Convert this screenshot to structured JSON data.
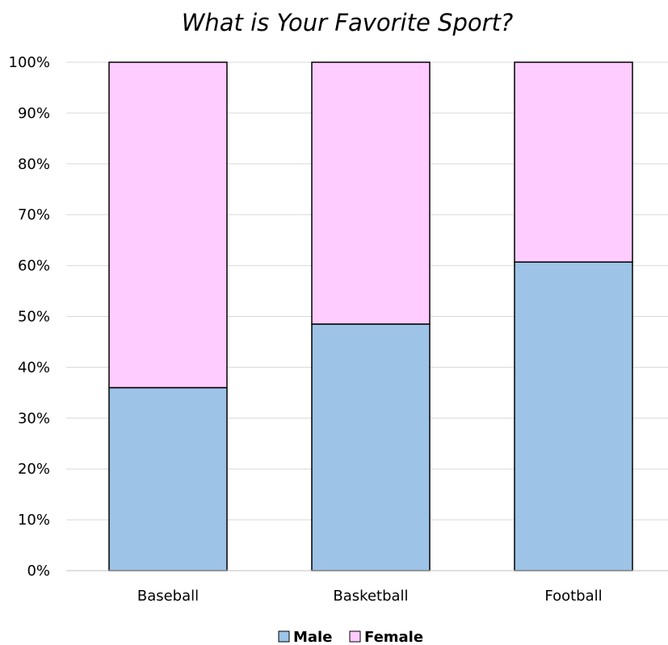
{
  "chart_data": {
    "type": "bar",
    "stacked": true,
    "percent_stacked": true,
    "title": "What is Your Favorite Sport?",
    "xlabel": "",
    "ylabel": "",
    "categories": [
      "Baseball",
      "Basketball",
      "Football"
    ],
    "series": [
      {
        "name": "Male",
        "color": "#9dc3e6",
        "values": [
          36,
          48.5,
          60.7
        ]
      },
      {
        "name": "Female",
        "color": "#ffccff",
        "values": [
          64,
          51.5,
          39.3
        ]
      }
    ],
    "ylim": [
      0,
      100
    ],
    "y_ticks": [
      "0%",
      "10%",
      "20%",
      "30%",
      "40%",
      "50%",
      "60%",
      "70%",
      "80%",
      "90%",
      "100%"
    ],
    "grid": true,
    "legend_position": "bottom"
  }
}
